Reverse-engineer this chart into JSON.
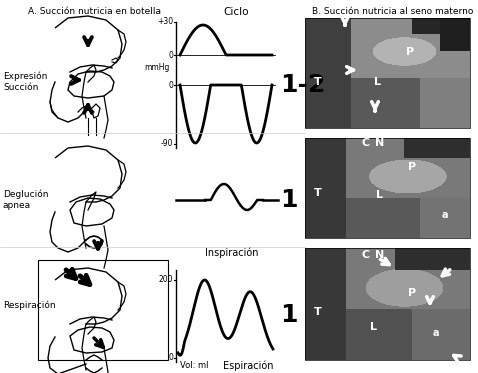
{
  "title_ciclo": "Ciclo",
  "title_A": "A. Succión nutricia en botella",
  "title_B": "B. Succión nutricia al seno materno",
  "label_expresion": "Expresión\nSucción",
  "label_deglucion": "Deglución\napnea",
  "label_respiracion": "Respiración",
  "label_mmHg": "mmHg",
  "label_volml": "Vol: ml",
  "label_inspiracion": "Inspiración",
  "label_espiracion": "Espiración",
  "label_12": "1-2",
  "label_1a": "1",
  "label_1b": "1",
  "tick_plus30": "+30",
  "tick_0a": "0",
  "tick_0b": "0",
  "tick_neg90": "-90",
  "tick_200": "200",
  "tick_0c": "0",
  "bg_color": "#ffffff",
  "line_color": "#000000",
  "text_color": "#000000"
}
